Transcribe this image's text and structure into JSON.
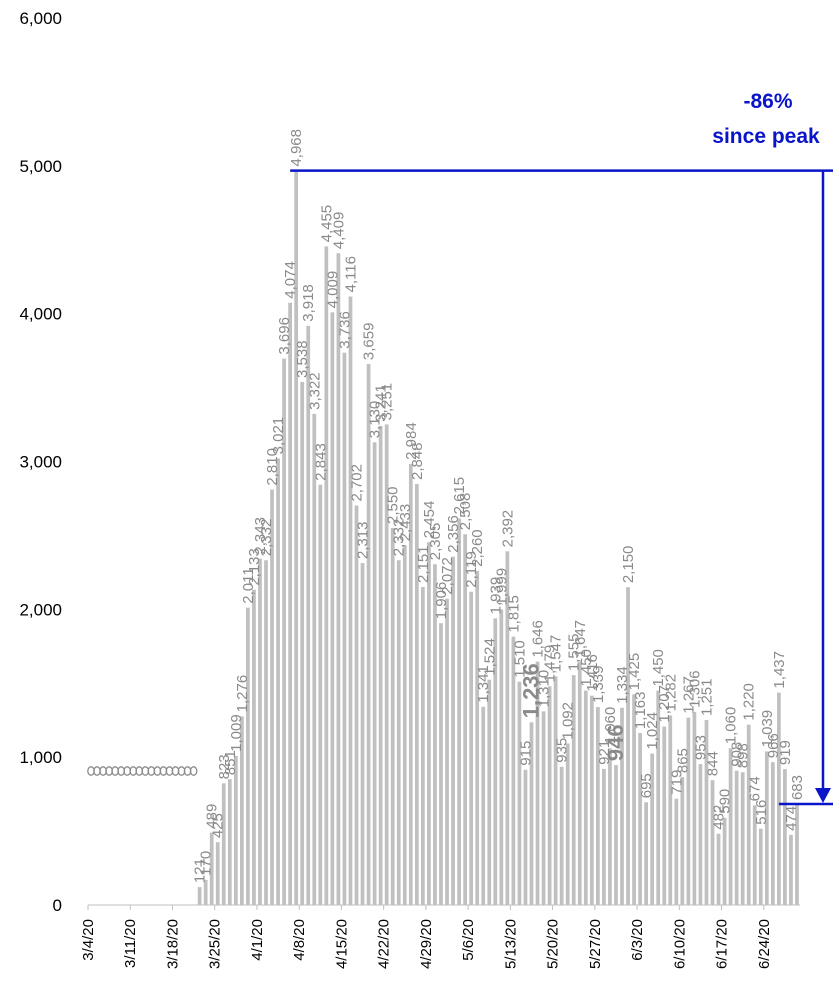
{
  "chart_data": {
    "type": "bar",
    "title": "",
    "xlabel": "",
    "ylabel": "",
    "ylim": [
      0,
      6000
    ],
    "y_ticks": [
      "0",
      "1,000",
      "2,000",
      "3,000",
      "4,000",
      "5,000",
      "6,000"
    ],
    "y_tick_values": [
      0,
      1000,
      2000,
      3000,
      4000,
      5000,
      6000
    ],
    "x_tick_labels": [
      "3/4/20",
      "3/11/20",
      "3/18/20",
      "3/25/20",
      "4/1/20",
      "4/8/20",
      "4/15/20",
      "4/22/20",
      "4/29/20",
      "5/6/20",
      "5/13/20",
      "5/20/20",
      "5/27/20",
      "6/3/20",
      "6/10/20",
      "6/17/20",
      "6/24/20"
    ],
    "x_tick_every": 7,
    "grid": false,
    "bar_color": "#c0c0c0",
    "label_color": "#8a8a8a",
    "annotation_color": "#0a14c8",
    "series": [
      {
        "values": [
          0,
          0,
          0,
          0,
          0,
          0,
          0,
          0,
          0,
          0,
          0,
          0,
          0,
          0,
          0,
          0,
          0,
          0,
          121,
          170,
          489,
          425,
          823,
          851,
          1009,
          1276,
          2011,
          2133,
          2343,
          2332,
          2810,
          3021,
          3696,
          4074,
          4968,
          3538,
          3918,
          3322,
          2843,
          4455,
          4009,
          4409,
          3736,
          4116,
          2702,
          2313,
          3659,
          3130,
          3241,
          3251,
          2550,
          2332,
          2433,
          2984,
          2848,
          2151,
          2454,
          2305,
          1906,
          2072,
          2356,
          2615,
          2508,
          2119,
          2260,
          1341,
          1524,
          1939,
          1999,
          2392,
          1815,
          1510,
          915,
          1236,
          1646,
          1310,
          1479,
          1547,
          935,
          1092,
          1555,
          1647,
          1450,
          1416,
          1339,
          921,
          1060,
          946,
          1334,
          2150,
          1425,
          1163,
          695,
          1024,
          1450,
          1207,
          1282,
          719,
          865,
          1267,
          1306,
          953,
          1251,
          844,
          482,
          590,
          1060,
          908,
          898,
          1220,
          674,
          516,
          1039,
          966,
          1437,
          919,
          474,
          683
        ],
        "labels": [
          "0",
          "0",
          "0",
          "0",
          "0",
          "0",
          "0",
          "0",
          "0",
          "0",
          "0",
          "0",
          "0",
          "0",
          "0",
          "0",
          "0",
          "0",
          "121",
          "170",
          "489",
          "425",
          "823",
          "851",
          "1,009",
          "1,276",
          "2,011",
          "2,133",
          "2,343",
          "2,332",
          "2,810",
          "3,021",
          "3,696",
          "4,074",
          "4,968",
          "3,538",
          "3,918",
          "3,322",
          "2,843",
          "4,455",
          "4,009",
          "4,409",
          "3,736",
          "4,116",
          "2,702",
          "2,313",
          "3,659",
          "3,130",
          "3,241",
          "3,251",
          "2,550",
          "2,332",
          "2,433",
          "2,984",
          "2,848",
          "2,151",
          "2,454",
          "2,305",
          "1,906",
          "2,072",
          "2,356",
          "2,615",
          "2,508",
          "2,119",
          "2,260",
          "1,341",
          "1,524",
          "1,939",
          "1,999",
          "2,392",
          "1,815",
          "1,510",
          "915",
          "1,236",
          "1,646",
          "1,310",
          "1,479",
          "1,547",
          "935",
          "1,092",
          "1,555",
          "1,647",
          "1,450",
          "1,416",
          "1,339",
          "921",
          "1,060",
          "946",
          "1,334",
          "2,150",
          "1,425",
          "1,163",
          "695",
          "1,024",
          "1,450",
          "1,207",
          "1,282",
          "719",
          "865",
          "1,267",
          "1,306",
          "953",
          "1,251",
          "844",
          "482",
          "590",
          "1,060",
          "908",
          "898",
          "1,220",
          "674",
          "516",
          "1,039",
          "966",
          "1,437",
          "919",
          "474",
          "683"
        ],
        "large_label_indices": [
          73,
          87
        ]
      }
    ],
    "annotation": {
      "line1": "-86%",
      "line2": "since peak",
      "peak_value": 4968,
      "latest_value": 683
    }
  }
}
